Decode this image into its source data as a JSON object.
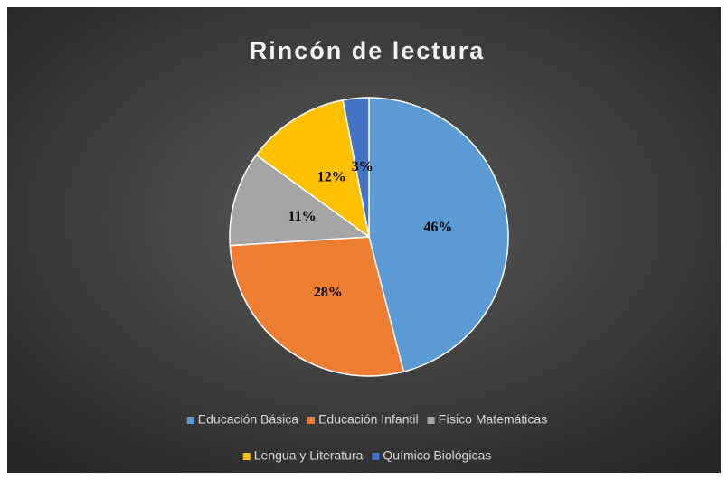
{
  "chart_data": {
    "type": "pie",
    "title": "Rincón de lectura",
    "categories": [
      "Educación Básica",
      "Educación Infantil",
      "Físico Matemáticas",
      "Lengua y Literatura",
      "Químico Biológicas"
    ],
    "values": [
      46,
      28,
      11,
      12,
      3
    ],
    "value_labels": [
      "46%",
      "28%",
      "11%",
      "12%",
      "3%"
    ],
    "colors": [
      "#5b9bd5",
      "#ed7d31",
      "#a5a5a5",
      "#ffc000",
      "#4472c4"
    ],
    "legend": "bottom"
  }
}
